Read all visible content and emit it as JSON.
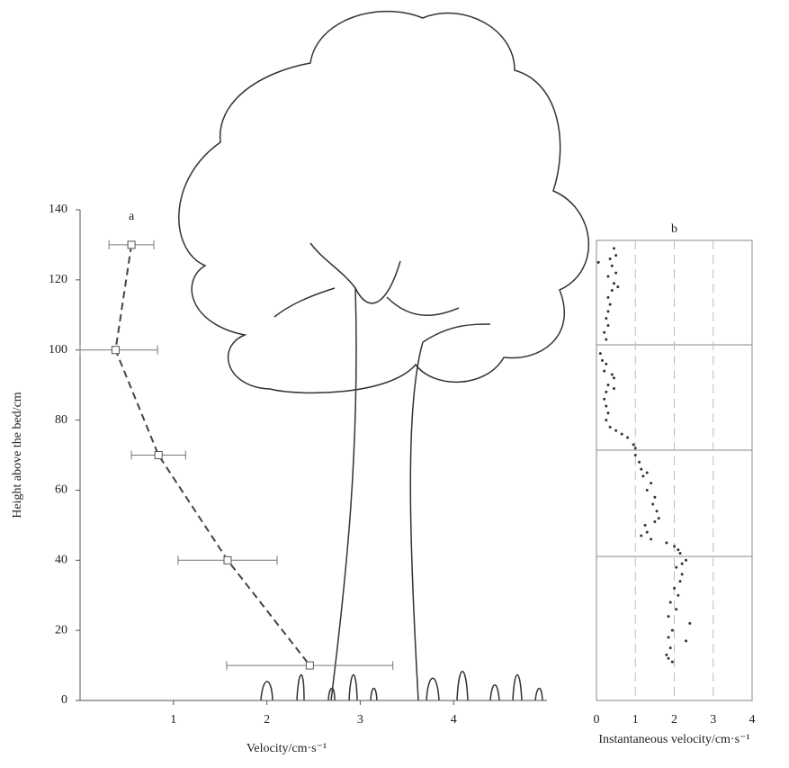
{
  "chart_data": [
    {
      "type": "line",
      "title": "a",
      "xlabel": "Velocity/cm·s⁻¹",
      "ylabel": "Height above the bed/cm",
      "series": [
        {
          "color": "#444444",
          "x": [
            0.55,
            0.38,
            0.84,
            1.58,
            2.46
          ],
          "y": [
            130,
            100,
            70,
            40,
            10
          ],
          "xerr": [
            0.24,
            0.45,
            0.29,
            0.53,
            0.89
          ]
        }
      ],
      "xlim": [
        0,
        5
      ],
      "xticks": [
        1,
        2,
        3,
        4
      ],
      "ylim": [
        0,
        140
      ],
      "yticks": [
        0,
        20,
        40,
        60,
        80,
        100,
        120,
        140
      ]
    },
    {
      "type": "scatter",
      "title": "b",
      "xlabel": "Instantaneous velocity/cm·s⁻¹",
      "color": "#333333",
      "xlim": [
        0,
        4
      ],
      "xticks": [
        0,
        1,
        2,
        3,
        4
      ],
      "ylim": [
        0,
        140
      ],
      "grid": true,
      "series": [
        {
          "x": [
            0.45,
            0.5,
            0.35,
            0.4,
            0.5,
            0.3,
            0.45,
            0.4,
            0.3,
            0.35,
            0.3,
            0.25,
            0.3,
            0.2,
            0.25,
            0.05,
            0.55
          ],
          "y": [
            129,
            127,
            126,
            124,
            122,
            121,
            119,
            117,
            115,
            113,
            111,
            109,
            107,
            105,
            103,
            125,
            118
          ]
        },
        {
          "x": [
            0.1,
            0.15,
            0.25,
            0.2,
            0.4,
            0.45,
            0.3,
            0.45,
            0.25,
            0.2,
            0.25,
            0.3,
            0.25,
            0.35,
            0.5,
            0.65,
            0.8,
            0.95,
            1.0
          ],
          "y": [
            99,
            97,
            96,
            94,
            93,
            92,
            90,
            89,
            88,
            86,
            84,
            82,
            80,
            78,
            77,
            76,
            75,
            73,
            72
          ]
        },
        {
          "x": [
            1.0,
            1.1,
            1.15,
            1.3,
            1.2,
            1.4,
            1.3,
            1.5,
            1.45,
            1.55,
            1.6,
            1.5,
            1.25,
            1.3,
            1.15,
            1.4,
            1.8,
            2.0,
            2.1,
            2.15
          ],
          "y": [
            70,
            68,
            66,
            65,
            64,
            62,
            60,
            58,
            56,
            54,
            52,
            51,
            50,
            48,
            47,
            46,
            45,
            44,
            43,
            42
          ]
        },
        {
          "x": [
            2.3,
            2.2,
            2.05,
            2.2,
            2.15,
            2.0,
            2.1,
            1.9,
            2.05,
            1.85,
            2.4,
            1.95,
            1.85,
            2.3,
            1.9,
            1.8,
            1.85,
            1.95
          ],
          "y": [
            40,
            39,
            38,
            36,
            34,
            32,
            30,
            28,
            26,
            24,
            22,
            20,
            18,
            17,
            15,
            13,
            12,
            11
          ]
        }
      ]
    }
  ]
}
